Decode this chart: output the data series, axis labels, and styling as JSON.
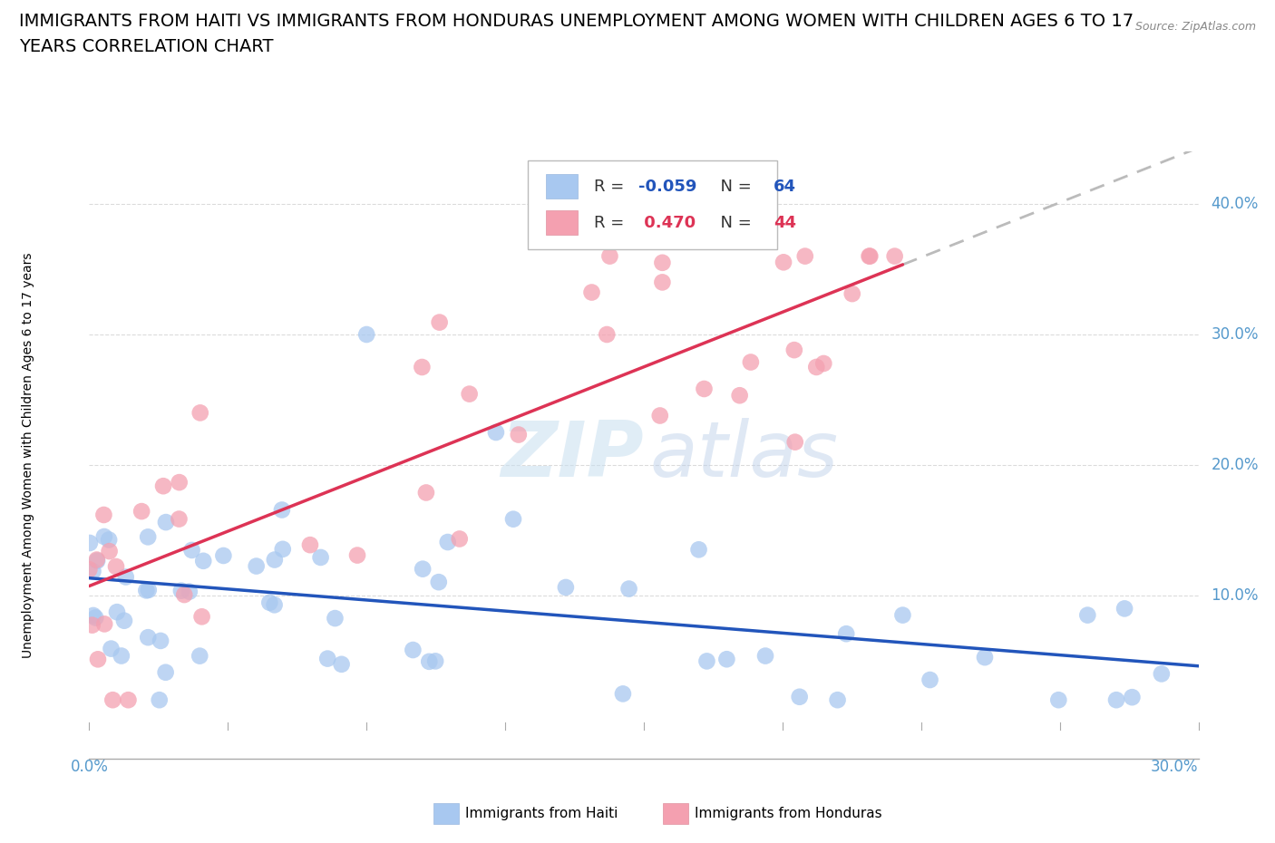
{
  "title_line1": "IMMIGRANTS FROM HAITI VS IMMIGRANTS FROM HONDURAS UNEMPLOYMENT AMONG WOMEN WITH CHILDREN AGES 6 TO 17",
  "title_line2": "YEARS CORRELATION CHART",
  "source_text": "Source: ZipAtlas.com",
  "ylabel_label": "Unemployment Among Women with Children Ages 6 to 17 years",
  "ytick_labels": [
    "10.0%",
    "20.0%",
    "30.0%",
    "40.0%"
  ],
  "ytick_values": [
    0.1,
    0.2,
    0.3,
    0.4
  ],
  "xlim": [
    0.0,
    0.3
  ],
  "ylim": [
    -0.025,
    0.44
  ],
  "haiti_color": "#a8c8f0",
  "honduras_color": "#f4a0b0",
  "haiti_line_color": "#2255bb",
  "honduras_line_color": "#dd3355",
  "haiti_R": -0.059,
  "haiti_N": 64,
  "honduras_R": 0.47,
  "honduras_N": 44,
  "legend_label_haiti": "Immigrants from Haiti",
  "legend_label_honduras": "Immigrants from Honduras",
  "watermark": "ZIPatlas",
  "grid_color": "#cccccc",
  "title_fontsize": 14,
  "axis_label_fontsize": 10,
  "tick_fontsize": 12,
  "right_tick_color": "#5599cc",
  "bottom_tick_color": "#5599cc"
}
